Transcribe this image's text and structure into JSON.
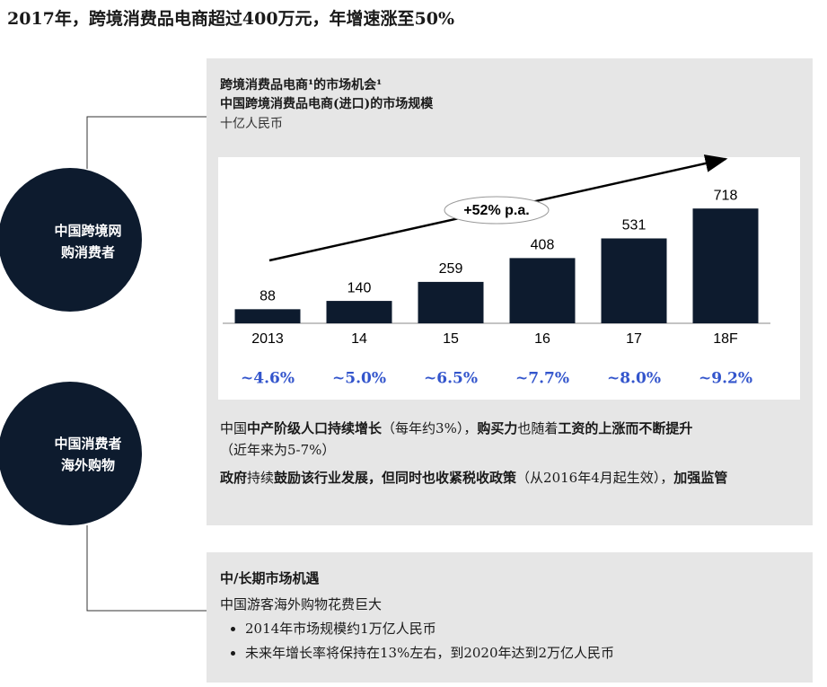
{
  "title": "2017年，跨境消费品电商超过400万元，年增速涨至50%",
  "circles": [
    {
      "lines": [
        "中国跨境网",
        "购消费者"
      ]
    },
    {
      "lines": [
        "中国消费者",
        "海外购物"
      ]
    }
  ],
  "chart_data": {
    "type": "bar",
    "title": "跨境消费品电商¹的市场机会¹",
    "subtitle": "中国跨境消费品电商(进口)的市场规模",
    "unit": "十亿人民币",
    "categories": [
      "2013",
      "14",
      "15",
      "16",
      "17",
      "18F"
    ],
    "values": [
      88,
      140,
      259,
      408,
      531,
      718
    ],
    "color": "#0d1b2e",
    "annotation": "+52% p.a."
  },
  "growth_rates": [
    "~4.6%",
    "~5.0%",
    "~6.5%",
    "~7.7%",
    "~8.0%",
    "~9.2%"
  ],
  "growth_color": "#3355cc",
  "paragraphs": [
    [
      "中国",
      "中产阶级人口持续增长",
      "（每年约3%），",
      "购买力",
      "也随着",
      "工资的上涨而不断提升",
      "（近年来为5-7%）"
    ],
    [
      "政府",
      "持续",
      "鼓励该行业发展，但同时也收紧税收政策",
      "（从2016年4月起生效），",
      "加强监管"
    ]
  ],
  "outlook": {
    "heading": "中/长期市场机遇",
    "line": "中国游客海外购物花费巨大",
    "bullets": [
      "2014年市场规模约1万亿人民币",
      "未来年增长率将保持在13%左右，到2020年达到2万亿人民币"
    ]
  }
}
